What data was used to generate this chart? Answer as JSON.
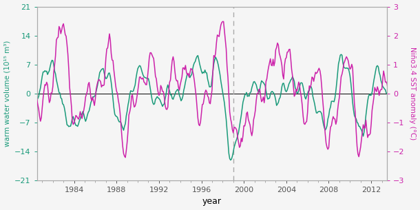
{
  "xlabel": "year",
  "ylabel_left": "warm water volume (10¹⁵ m³)",
  "ylabel_right": "Niño3.4 SST anomaly (°C)",
  "ylim_left": [
    -21,
    21
  ],
  "ylim_right": [
    -3,
    3
  ],
  "yticks_left": [
    -21,
    -14,
    -7,
    0,
    7,
    14,
    21
  ],
  "yticks_right": [
    -3,
    -2,
    -1,
    0,
    1,
    2,
    3
  ],
  "xlim": [
    1980.5,
    2013.5
  ],
  "xticks": [
    1984,
    1988,
    1992,
    1996,
    2000,
    2004,
    2008,
    2012
  ],
  "vline_x": 1999.0,
  "color_green": "#1a9a7a",
  "color_magenta": "#cc22aa",
  "color_vline": "#aaaaaa",
  "linewidth_green": 1.1,
  "linewidth_magenta": 1.1,
  "plot_background": "#f5f5f5",
  "spine_color": "#aaaaaa",
  "tick_color": "#555555"
}
